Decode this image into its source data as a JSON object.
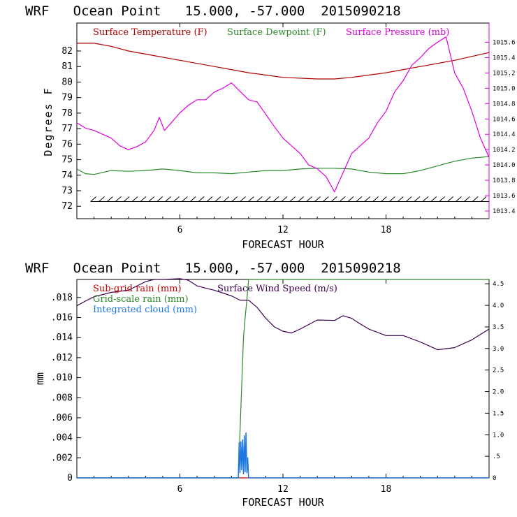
{
  "colors": {
    "temperature": "#b00000",
    "dewpoint": "#2a8a2a",
    "pressure": "#e000e0",
    "subgrid": "#c00000",
    "gridscale": "#2a8a2a",
    "cloud": "#1e78e0",
    "wind": "#3a0050",
    "axis": "#000000"
  },
  "chart_data": [
    {
      "type": "line",
      "title": "WRF   Ocean Point   15.000, -57.000  2015090218",
      "xlabel": "FORECAST HOUR",
      "ylabel": "Degrees F",
      "xlim": [
        0,
        24
      ],
      "ylim": [
        71.2,
        83.8
      ],
      "y2lim": [
        1013.3,
        1015.85
      ],
      "x_ticks": [
        "6",
        "12",
        "18"
      ],
      "y_ticks": [
        "72",
        "73",
        "74",
        "75",
        "76",
        "77",
        "78",
        "79",
        "80",
        "81",
        "82"
      ],
      "y2_ticks": [
        "1013.4",
        "1013.6",
        "1013.8",
        "1014.0",
        "1014.2",
        "1014.4",
        "1014.6",
        "1014.8",
        "1015.0",
        "1015.2",
        "1015.4",
        "1015.6"
      ],
      "legend": [
        "Surface Temperature (F)",
        "Surface Dewpoint (F)",
        "Surface Pressure (mb)"
      ],
      "series": [
        {
          "name": "Surface Temperature (F)",
          "axis": "left",
          "x": [
            0,
            1,
            2,
            3,
            4,
            6,
            8,
            10,
            12,
            14,
            15,
            16,
            18,
            20,
            22,
            24
          ],
          "y": [
            82.5,
            82.5,
            82.3,
            82.0,
            81.8,
            81.4,
            81.0,
            80.6,
            80.3,
            80.2,
            80.2,
            80.3,
            80.6,
            81.0,
            81.4,
            81.9
          ]
        },
        {
          "name": "Surface Dewpoint (F)",
          "axis": "left",
          "x": [
            0,
            0.5,
            1,
            2,
            3,
            4,
            5,
            6,
            7,
            8,
            9,
            10,
            11,
            12,
            13,
            14,
            15,
            16,
            17,
            18,
            19,
            20,
            21,
            22,
            23,
            24
          ],
          "y": [
            74.4,
            74.1,
            74.05,
            74.3,
            74.25,
            74.3,
            74.4,
            74.3,
            74.15,
            74.15,
            74.1,
            74.2,
            74.3,
            74.3,
            74.4,
            74.45,
            74.45,
            74.4,
            74.2,
            74.1,
            74.1,
            74.3,
            74.6,
            74.9,
            75.1,
            75.2
          ]
        },
        {
          "name": "Surface Pressure (mb)",
          "axis": "right",
          "x": [
            0,
            0.5,
            1,
            1.5,
            2,
            2.5,
            3,
            3.5,
            4,
            4.5,
            4.8,
            5.1,
            5.5,
            6,
            6.5,
            7,
            7.5,
            8,
            8.5,
            9,
            9.5,
            10,
            10.5,
            11,
            11.5,
            12,
            12.5,
            13,
            13.5,
            14,
            14.5,
            15,
            15.3,
            15.7,
            16,
            16.5,
            17,
            17.5,
            18,
            18.5,
            19,
            19.5,
            20,
            20.5,
            21,
            21.5,
            22,
            22.5,
            23,
            23.5,
            24
          ],
          "y": [
            1014.55,
            1014.48,
            1014.45,
            1014.4,
            1014.35,
            1014.25,
            1014.2,
            1014.24,
            1014.3,
            1014.45,
            1014.62,
            1014.45,
            1014.55,
            1014.68,
            1014.78,
            1014.85,
            1014.85,
            1014.95,
            1015.0,
            1015.07,
            1014.96,
            1014.85,
            1014.82,
            1014.66,
            1014.5,
            1014.35,
            1014.25,
            1014.15,
            1014.0,
            1013.95,
            1013.85,
            1013.65,
            1013.8,
            1014.0,
            1014.15,
            1014.25,
            1014.35,
            1014.55,
            1014.7,
            1014.95,
            1015.1,
            1015.3,
            1015.4,
            1015.52,
            1015.6,
            1015.67,
            1015.2,
            1015.0,
            1014.7,
            1014.35,
            1014.1
          ]
        }
      ],
      "wind_barbs": {
        "level": 72.3,
        "from_hour": 0.8,
        "to_hour": 24,
        "count": 48
      }
    },
    {
      "type": "line",
      "title": "WRF   Ocean Point   15.000, -57.000  2015090218",
      "xlabel": "FORECAST HOUR",
      "ylabel": "mm",
      "xlim": [
        0,
        24
      ],
      "ylim": [
        0,
        0.0198
      ],
      "y2lim": [
        0,
        4.6
      ],
      "x_ticks": [
        "6",
        "12",
        "18"
      ],
      "y_ticks": [
        "0",
        ".002",
        ".004",
        ".006",
        ".008",
        ".010",
        ".012",
        ".014",
        ".016",
        ".018"
      ],
      "y2_ticks": [
        "0",
        ".5",
        "1.0",
        "1.5",
        "2.0",
        "2.5",
        "3.0",
        "3.5",
        "4.0",
        "4.5"
      ],
      "legend": [
        "Sub-grid rain (mm)",
        "Grid-scale rain (mm)",
        "Integrated cloud (mm)",
        "Surface Wind Speed (m/s)"
      ],
      "series": [
        {
          "name": "Sub-grid rain (mm)",
          "axis": "left",
          "x": [
            0,
            24
          ],
          "y": [
            0,
            0
          ]
        },
        {
          "name": "Grid-scale rain (mm)",
          "axis": "left",
          "x": [
            0,
            9.4,
            9.55,
            9.7,
            9.8,
            9.9,
            10.0,
            24
          ],
          "y": [
            0,
            0,
            0.007,
            0.014,
            0.016,
            0.0178,
            0.0198,
            0.0198
          ]
        },
        {
          "name": "Integrated cloud (mm)",
          "axis": "left",
          "x": [
            0,
            9.4,
            9.45,
            9.5,
            9.55,
            9.6,
            9.65,
            9.7,
            9.75,
            9.8,
            9.85,
            9.9,
            9.95,
            10.0,
            24
          ],
          "y": [
            0,
            0,
            0.0035,
            0.0005,
            0.0036,
            0.0008,
            0.0038,
            0.0004,
            0.0042,
            0.0006,
            0.0045,
            0.0005,
            0.002,
            0,
            0
          ]
        },
        {
          "name": "Surface Wind Speed (m/s)",
          "axis": "right",
          "x": [
            0,
            0.5,
            1,
            2,
            3,
            4,
            4.5,
            5,
            6,
            6.5,
            7,
            8,
            9,
            9.5,
            10,
            10.5,
            11,
            11.5,
            12,
            12.5,
            13,
            14,
            15,
            15.5,
            16,
            16.5,
            17,
            18,
            19,
            20,
            21,
            22,
            23,
            24
          ],
          "y": [
            3.99,
            4.1,
            4.2,
            4.3,
            4.35,
            4.55,
            4.6,
            4.6,
            4.62,
            4.58,
            4.45,
            4.35,
            4.22,
            4.12,
            4.12,
            3.95,
            3.7,
            3.5,
            3.4,
            3.36,
            3.45,
            3.66,
            3.65,
            3.76,
            3.7,
            3.57,
            3.45,
            3.3,
            3.3,
            3.15,
            2.97,
            3.02,
            3.2,
            3.45
          ]
        }
      ]
    }
  ]
}
